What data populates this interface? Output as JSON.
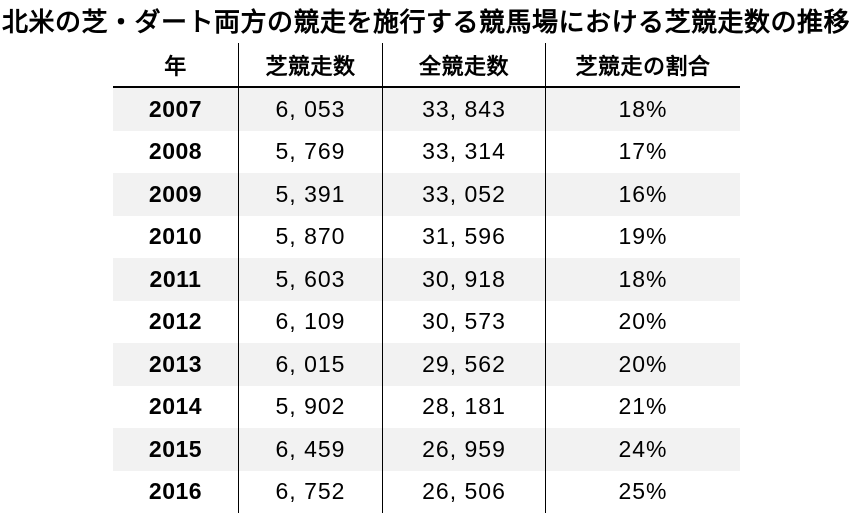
{
  "title": "北米の芝・ダート両方の競走を施行する競馬場における芝競走数の推移",
  "table": {
    "columns": [
      {
        "key": "year",
        "label": "年"
      },
      {
        "key": "turf_races",
        "label": "芝競走数"
      },
      {
        "key": "total_races",
        "label": "全競走数"
      },
      {
        "key": "turf_ratio",
        "label": "芝競走の割合"
      }
    ],
    "rows": [
      {
        "year": "2007",
        "turf_races": "6, 053",
        "total_races": "33, 843",
        "turf_ratio": "18%"
      },
      {
        "year": "2008",
        "turf_races": "5, 769",
        "total_races": "33, 314",
        "turf_ratio": "17%"
      },
      {
        "year": "2009",
        "turf_races": "5, 391",
        "total_races": "33, 052",
        "turf_ratio": "16%"
      },
      {
        "year": "2010",
        "turf_races": "5, 870",
        "total_races": "31, 596",
        "turf_ratio": "19%"
      },
      {
        "year": "2011",
        "turf_races": "5, 603",
        "total_races": "30, 918",
        "turf_ratio": "18%"
      },
      {
        "year": "2012",
        "turf_races": "6, 109",
        "total_races": "30, 573",
        "turf_ratio": "20%"
      },
      {
        "year": "2013",
        "turf_races": "6, 015",
        "total_races": "29, 562",
        "turf_ratio": "20%"
      },
      {
        "year": "2014",
        "turf_races": "5, 902",
        "total_races": "28, 181",
        "turf_ratio": "21%"
      },
      {
        "year": "2015",
        "turf_races": "6, 459",
        "total_races": "26, 959",
        "turf_ratio": "24%"
      },
      {
        "year": "2016",
        "turf_races": "6, 752",
        "total_races": "26, 506",
        "turf_ratio": "25%"
      }
    ],
    "stripe_color": "#f2f2f2",
    "rule_color": "#000000"
  },
  "chart_data": {
    "type": "table",
    "title": "北米の芝・ダート両方の競走を施行する競馬場における芝競走数の推移",
    "columns": [
      "年",
      "芝競走数",
      "全競走数",
      "芝競走の割合"
    ],
    "categories": [
      "2007",
      "2008",
      "2009",
      "2010",
      "2011",
      "2012",
      "2013",
      "2014",
      "2015",
      "2016"
    ],
    "series": [
      {
        "name": "芝競走数",
        "values": [
          6053,
          5769,
          5391,
          5870,
          5603,
          6109,
          6015,
          5902,
          6459,
          6752
        ]
      },
      {
        "name": "全競走数",
        "values": [
          33843,
          33314,
          33052,
          31596,
          30918,
          30573,
          29562,
          28181,
          26959,
          26506
        ]
      },
      {
        "name": "芝競走の割合(%)",
        "values": [
          18,
          17,
          16,
          19,
          18,
          20,
          20,
          21,
          24,
          25
        ]
      }
    ]
  }
}
